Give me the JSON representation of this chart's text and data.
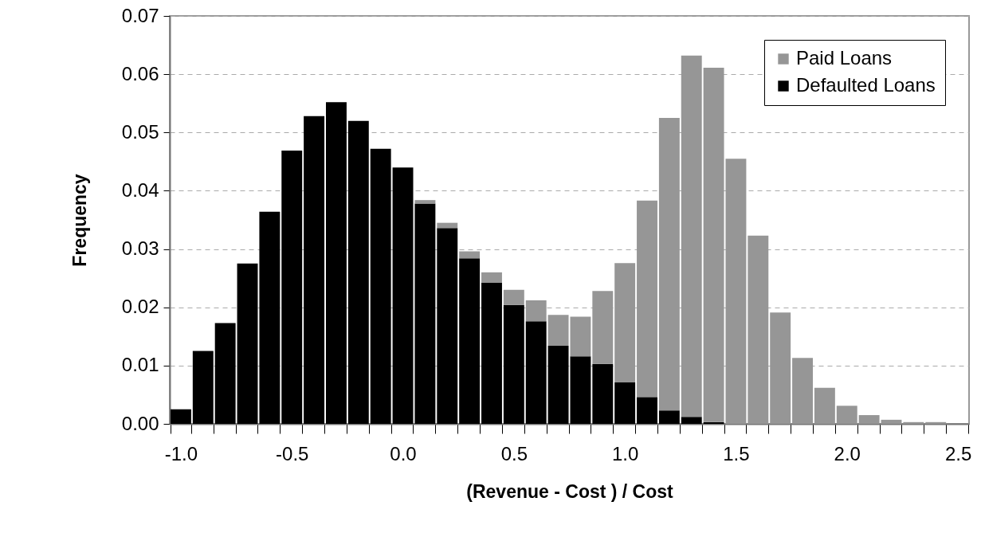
{
  "chart_data": {
    "type": "bar",
    "stacked": true,
    "xlabel": "(Revenue - Cost ) / Cost",
    "ylabel": "Frequency",
    "categories": [
      "-1.0",
      null,
      null,
      null,
      null,
      "-0.5",
      null,
      null,
      null,
      null,
      "0.0",
      null,
      null,
      null,
      null,
      "0.5",
      null,
      null,
      null,
      null,
      "1.0",
      null,
      null,
      null,
      null,
      "1.5",
      null,
      null,
      null,
      null,
      "2.0",
      null,
      null,
      null,
      null,
      "2.5"
    ],
    "series": [
      {
        "name": "Defaulted Loans",
        "color": "#000000",
        "values": [
          0.0025,
          0.0125,
          0.0173,
          0.0275,
          0.0364,
          0.0469,
          0.0528,
          0.0552,
          0.052,
          0.0472,
          0.044,
          0.0378,
          0.0336,
          0.0284,
          0.0242,
          0.0204,
          0.0176,
          0.0134,
          0.0116,
          0.0103,
          0.0071,
          0.0046,
          0.0023,
          0.0012,
          0.0003,
          0,
          0,
          0,
          0,
          0,
          0,
          0,
          0,
          0,
          0,
          0
        ]
      },
      {
        "name": "Paid Loans",
        "color": "#969696",
        "values": [
          0,
          0,
          0,
          0,
          0,
          0,
          0,
          0,
          0,
          0,
          0,
          0.0006,
          0.0009,
          0.0012,
          0.0018,
          0.0026,
          0.0036,
          0.0053,
          0.0068,
          0.0125,
          0.0205,
          0.0337,
          0.0502,
          0.062,
          0.0608,
          0.0455,
          0.0323,
          0.0191,
          0.0113,
          0.0062,
          0.0031,
          0.0015,
          0.0007,
          0.0003,
          0.0003,
          0
        ]
      }
    ],
    "ylim": [
      0,
      0.07
    ],
    "yticks": [
      {
        "value": 0,
        "label": "0.00"
      },
      {
        "value": 0.01,
        "label": "0.01"
      },
      {
        "value": 0.02,
        "label": "0.02"
      },
      {
        "value": 0.03,
        "label": "0.03"
      },
      {
        "value": 0.04,
        "label": "0.04"
      },
      {
        "value": 0.05,
        "label": "0.05"
      },
      {
        "value": 0.06,
        "label": "0.06"
      },
      {
        "value": 0.07,
        "label": "0.07"
      }
    ],
    "grid": "y",
    "legend": "top right"
  }
}
